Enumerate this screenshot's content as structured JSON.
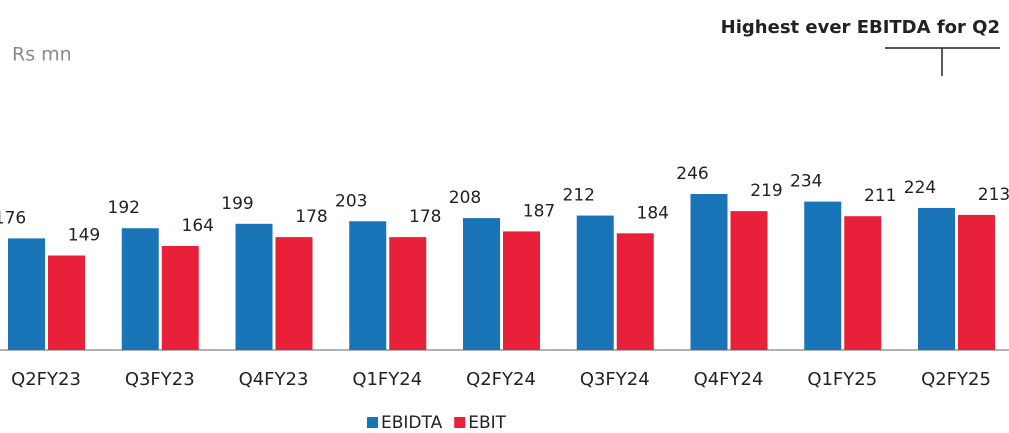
{
  "chart_data": {
    "type": "bar",
    "y_label": "Rs mn",
    "annotation": "Highest ever EBITDA for Q2",
    "categories": [
      "Q2FY23",
      "Q3FY23",
      "Q4FY23",
      "Q1FY24",
      "Q2FY24",
      "Q3FY24",
      "Q4FY24",
      "Q1FY25",
      "Q2FY25"
    ],
    "series": [
      {
        "name": "EBIDTA",
        "color": "#1a75b8",
        "values": [
          176,
          192,
          199,
          203,
          208,
          212,
          246,
          234,
          224
        ]
      },
      {
        "name": "EBIT",
        "color": "#e8203a",
        "values": [
          149,
          164,
          178,
          178,
          187,
          184,
          219,
          211,
          213
        ]
      }
    ]
  }
}
